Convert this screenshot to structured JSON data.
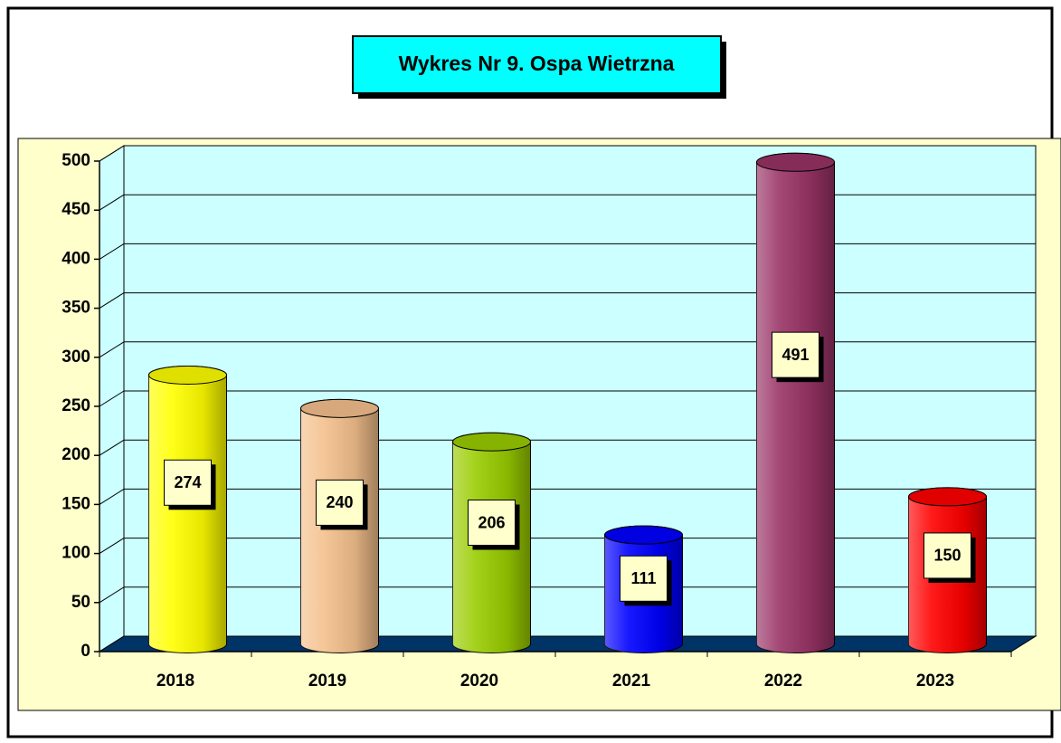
{
  "chart_data": {
    "type": "bar",
    "title": "Wykres Nr 9. Ospa Wietrzna",
    "categories": [
      "2018",
      "2019",
      "2020",
      "2021",
      "2022",
      "2023"
    ],
    "values": [
      274,
      240,
      206,
      111,
      491,
      150
    ],
    "colors": [
      "#ffff00",
      "#f4c08c",
      "#99cc00",
      "#0000ff",
      "#993366",
      "#ff0000"
    ],
    "ylim": [
      0,
      500
    ],
    "yticks": [
      0,
      50,
      100,
      150,
      200,
      250,
      300,
      350,
      400,
      450,
      500
    ],
    "grid": true
  }
}
